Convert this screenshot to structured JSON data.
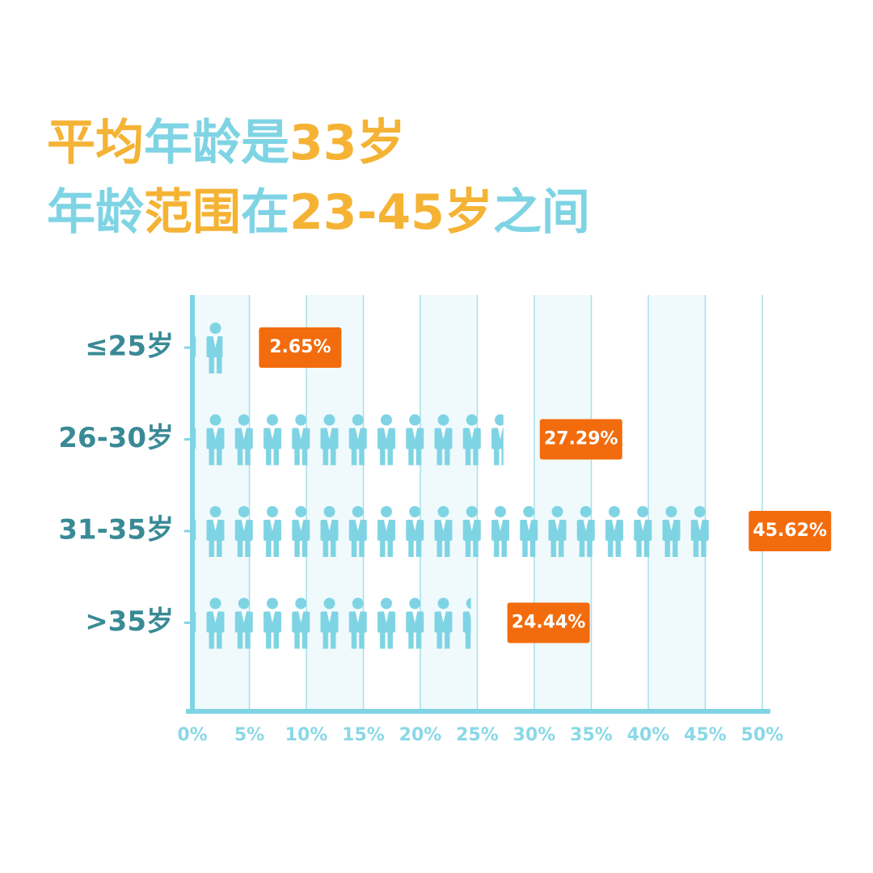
{
  "chart_data": {
    "type": "pictograph-bar",
    "title": [
      [
        {
          "text": "平均",
          "color": "#f5b335"
        },
        {
          "text": "年龄是",
          "color": "#7fd4e4"
        },
        {
          "text": "33岁",
          "color": "#f5b335"
        }
      ],
      [
        {
          "text": "年龄",
          "color": "#7fd4e4"
        },
        {
          "text": "范围",
          "color": "#f5b335"
        },
        {
          "text": "在",
          "color": "#7fd4e4"
        },
        {
          "text": "23-45岁",
          "color": "#f5b335"
        },
        {
          "text": "之间",
          "color": "#7fd4e4"
        }
      ]
    ],
    "categories": [
      "≤25岁",
      "26-30岁",
      "31-35岁",
      ">35岁"
    ],
    "values": [
      2.65,
      27.29,
      45.62,
      24.44
    ],
    "value_labels": [
      "2.65%",
      "27.29%",
      "45.62%",
      "24.44%"
    ],
    "color": "#7fd4e4",
    "label_color": "#f26c0d",
    "xlim": [
      0,
      50
    ],
    "xticks": [
      {
        "value": 0,
        "label": "0%"
      },
      {
        "value": 5,
        "label": "5%"
      },
      {
        "value": 10,
        "label": "10%"
      },
      {
        "value": 15,
        "label": "15%"
      },
      {
        "value": 20,
        "label": "20%"
      },
      {
        "value": 25,
        "label": "25%"
      },
      {
        "value": 30,
        "label": "30%"
      },
      {
        "value": 35,
        "label": "35%"
      },
      {
        "value": 40,
        "label": "40%"
      },
      {
        "value": 45,
        "label": "45%"
      },
      {
        "value": 50,
        "label": "50%"
      }
    ],
    "grid": true
  }
}
